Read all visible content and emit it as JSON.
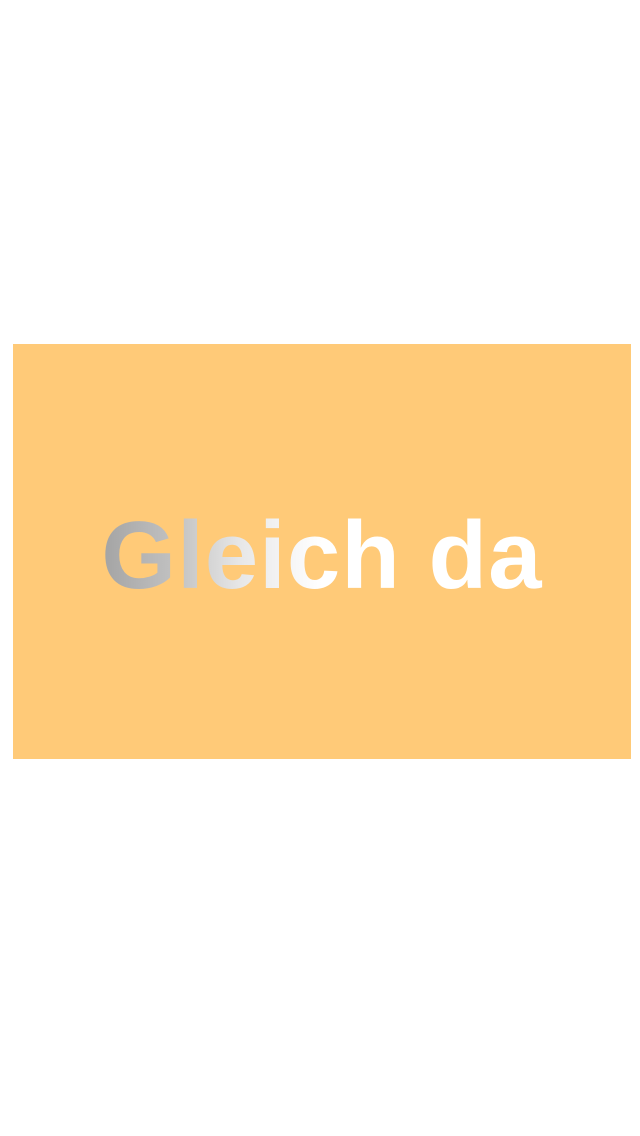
{
  "loading": {
    "text": "Gleich da",
    "card_color": "#ffca78",
    "text_gradient_start": "#a3a3a3",
    "text_gradient_end": "#ffffff"
  }
}
